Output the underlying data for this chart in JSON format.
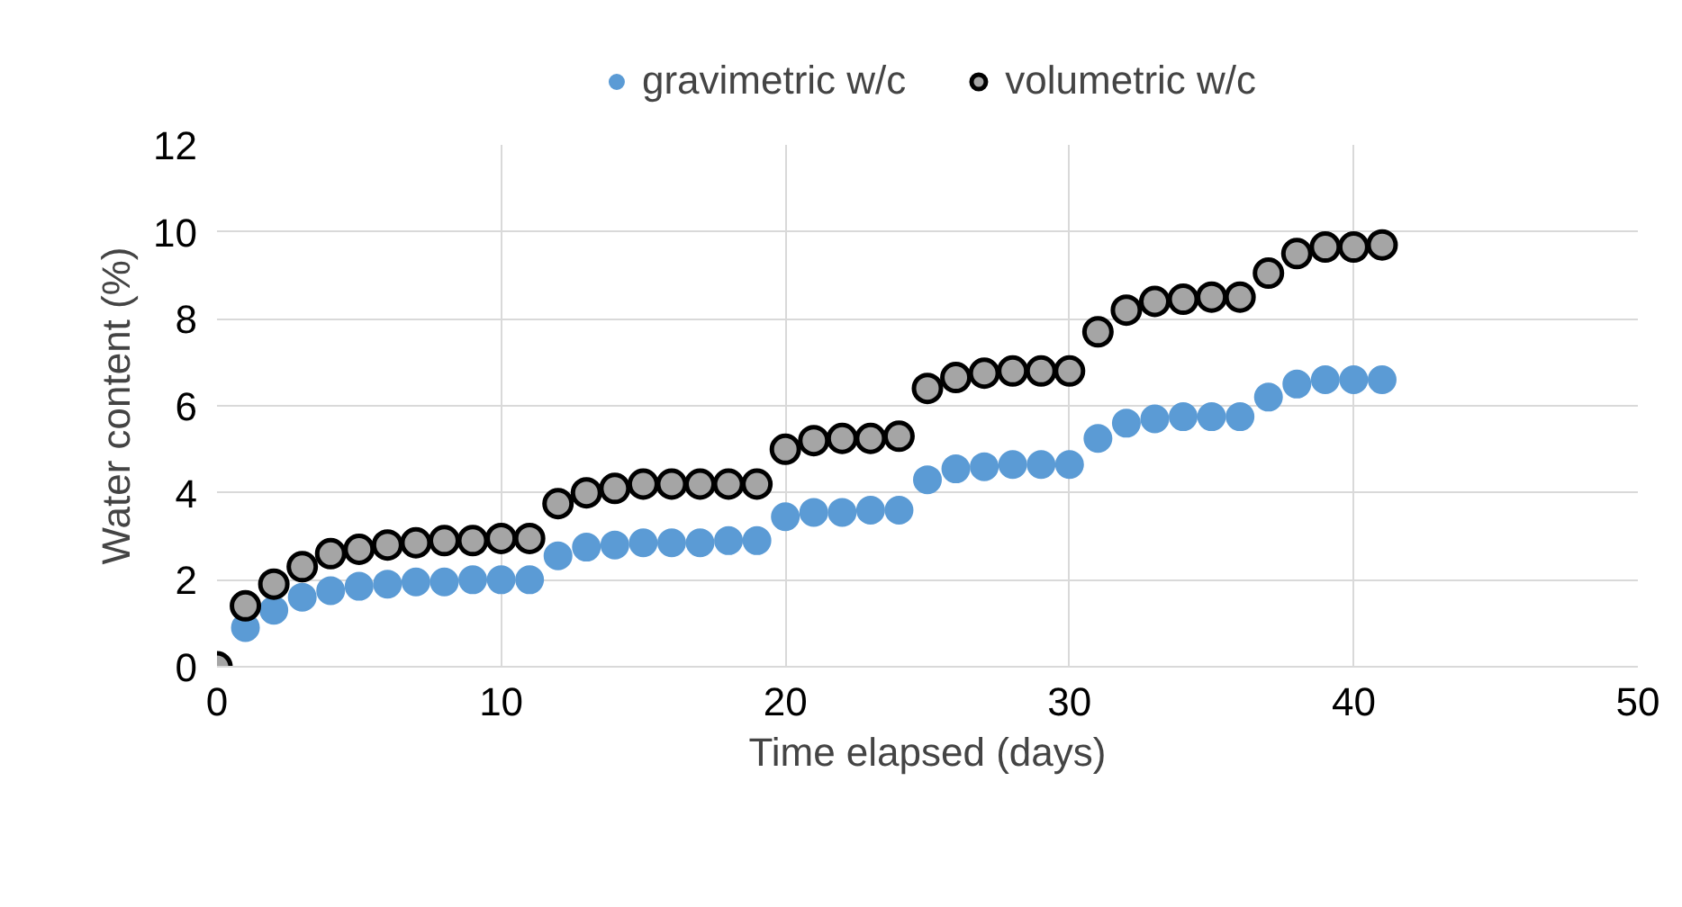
{
  "chart_data": {
    "type": "scatter",
    "xlabel": "Time elapsed (days)",
    "ylabel": "Water content (%)",
    "x": [
      0,
      1,
      2,
      3,
      4,
      5,
      6,
      7,
      8,
      9,
      10,
      11,
      12,
      13,
      14,
      15,
      16,
      17,
      18,
      19,
      20,
      21,
      22,
      23,
      24,
      25,
      26,
      27,
      28,
      29,
      30,
      31,
      32,
      33,
      34,
      35,
      36,
      37,
      38,
      39,
      40,
      41
    ],
    "series": [
      {
        "name": "gravimetric w/c",
        "color": "#5b9bd5",
        "values": [
          null,
          0.9,
          1.3,
          1.6,
          1.75,
          1.85,
          1.9,
          1.95,
          1.95,
          2.0,
          2.0,
          2.0,
          2.55,
          2.75,
          2.8,
          2.85,
          2.85,
          2.85,
          2.9,
          2.9,
          3.45,
          3.55,
          3.55,
          3.6,
          3.6,
          4.3,
          4.55,
          4.6,
          4.65,
          4.65,
          4.65,
          5.25,
          5.6,
          5.7,
          5.75,
          5.75,
          5.75,
          6.2,
          6.5,
          6.6,
          6.6,
          6.6
        ]
      },
      {
        "name": "volumetric w/c",
        "color": "#a5a5a5",
        "values": [
          0,
          1.4,
          1.9,
          2.3,
          2.6,
          2.7,
          2.8,
          2.85,
          2.9,
          2.9,
          2.95,
          2.95,
          3.75,
          4.0,
          4.1,
          4.2,
          4.2,
          4.2,
          4.2,
          4.2,
          5.0,
          5.2,
          5.25,
          5.25,
          5.3,
          6.4,
          6.65,
          6.75,
          6.8,
          6.8,
          6.8,
          7.7,
          8.2,
          8.4,
          8.45,
          8.5,
          8.5,
          9.05,
          9.5,
          9.65,
          9.65,
          9.7
        ]
      }
    ],
    "xlim": [
      0,
      50
    ],
    "xticks": [
      0,
      10,
      20,
      30,
      40,
      50
    ],
    "ylim": [
      0,
      12
    ],
    "yticks": [
      0,
      2,
      4,
      6,
      8,
      10,
      12
    ],
    "grid": true,
    "legend": "top",
    "marker": "circle"
  }
}
